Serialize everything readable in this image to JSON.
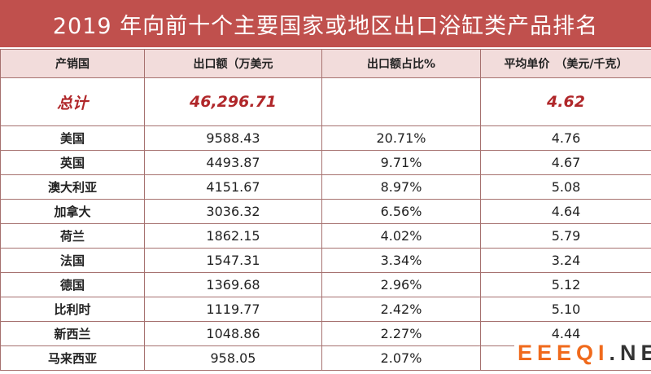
{
  "title": "2019 年向前十个主要国家或地区出口浴缸类产品排名",
  "headers": [
    "产销国",
    "出口额（万美元",
    "出口额占比%",
    "平均单价　（美元/千克）"
  ],
  "total": {
    "label": "总计",
    "export": "46,296.71",
    "share": "",
    "price": "4.62"
  },
  "rows": [
    {
      "country": "美国",
      "export": "9588.43",
      "share": "20.71%",
      "price": "4.76"
    },
    {
      "country": "英国",
      "export": "4493.87",
      "share": "9.71%",
      "price": "4.67"
    },
    {
      "country": "澳大利亚",
      "export": "4151.67",
      "share": "8.97%",
      "price": "5.08"
    },
    {
      "country": "加拿大",
      "export": "3036.32",
      "share": "6.56%",
      "price": "4.64"
    },
    {
      "country": "荷兰",
      "export": "1862.15",
      "share": "4.02%",
      "price": "5.79"
    },
    {
      "country": "法国",
      "export": "1547.31",
      "share": "3.34%",
      "price": "3.24"
    },
    {
      "country": "德国",
      "export": "1369.68",
      "share": "2.96%",
      "price": "5.12"
    },
    {
      "country": "比利时",
      "export": "1119.77",
      "share": "2.42%",
      "price": "5.10"
    },
    {
      "country": "新西兰",
      "export": "1048.86",
      "share": "2.27%",
      "price": "4.44"
    },
    {
      "country": "马来西亚",
      "export": "958.05",
      "share": "2.07%",
      "price": ""
    }
  ],
  "watermark": {
    "orange": "EEEQI",
    "dark": ".NET"
  }
}
